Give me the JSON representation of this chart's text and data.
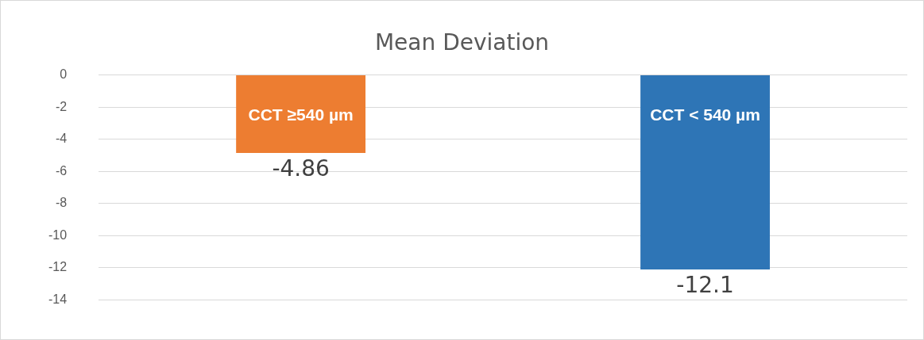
{
  "chart_data": {
    "type": "bar",
    "title": "Mean Deviation",
    "categories": [
      "CCT ≥540 µm",
      "CCT < 540 µm"
    ],
    "values": [
      -4.86,
      -12.1
    ],
    "colors": [
      "#ed7d31",
      "#2e75b6"
    ],
    "ylim": [
      -14,
      0
    ],
    "yticks": [
      0,
      -2,
      -4,
      -6,
      -8,
      -10,
      -12,
      -14
    ],
    "grid": "y",
    "tick_labels": "y",
    "data_labels": true
  }
}
